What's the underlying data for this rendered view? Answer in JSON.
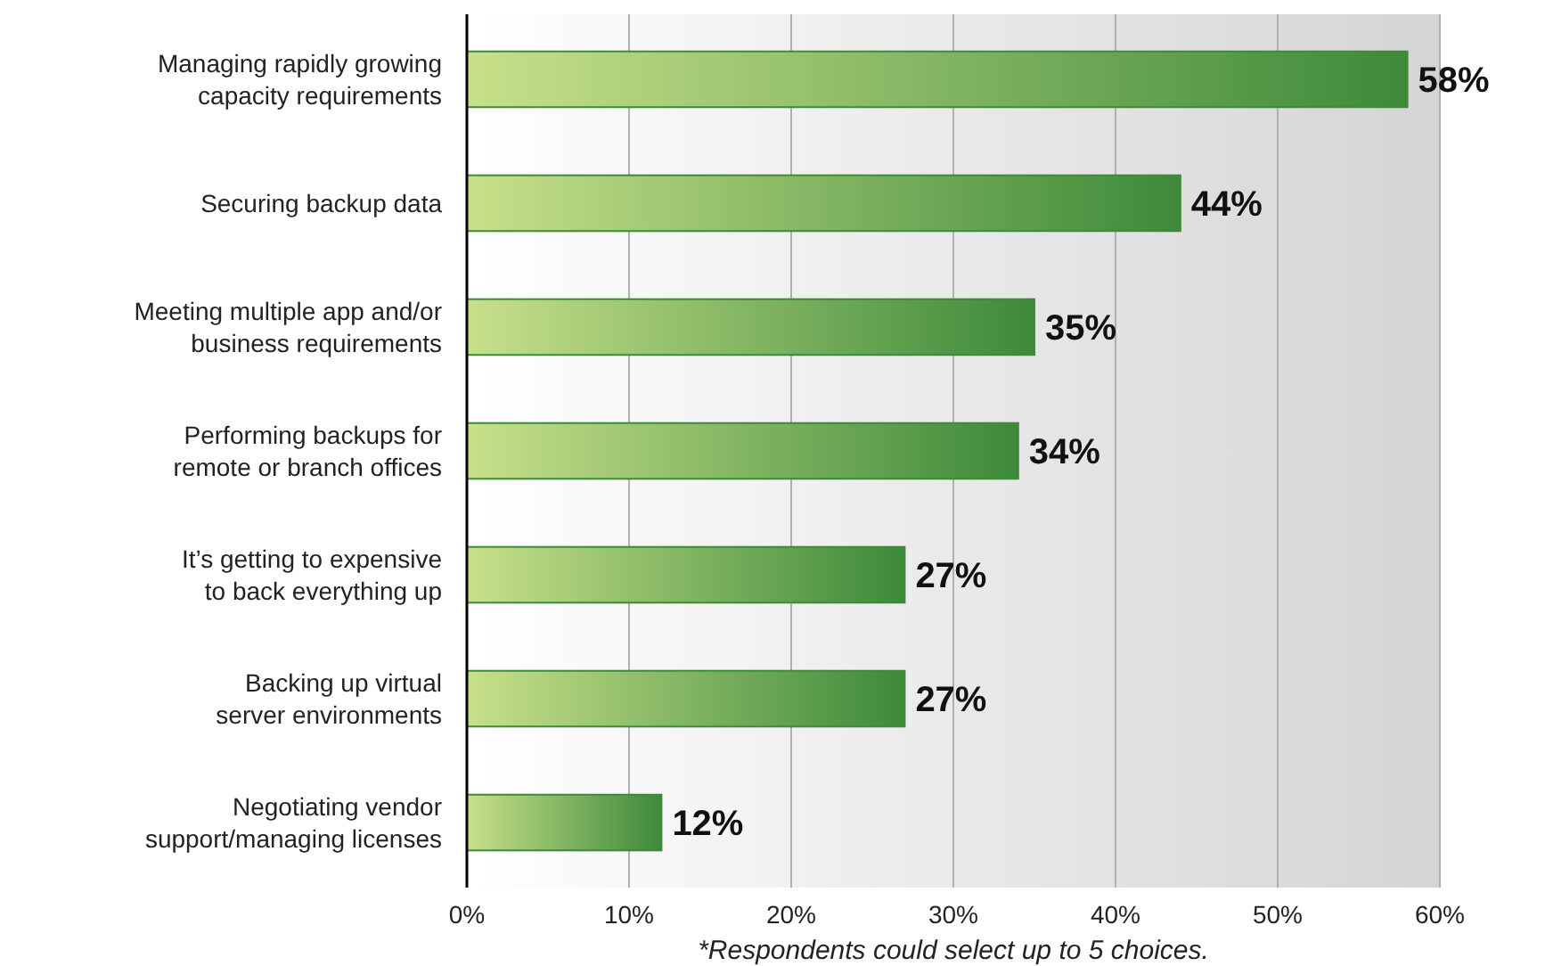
{
  "chart_data": {
    "type": "bar",
    "orientation": "horizontal",
    "categories": [
      "Managing rapidly growing capacity requirements",
      "Securing backup data",
      "Meeting multiple app and/or business requirements",
      "Performing backups for remote or branch offices",
      "It’s getting to expensive to back everything up",
      "Backing up virtual server environments",
      "Negotiating vendor support/managing licenses"
    ],
    "values": [
      58,
      44,
      35,
      34,
      27,
      27,
      12
    ],
    "color": "#3d8a3a",
    "xlim": [
      0,
      60
    ],
    "xticks": [
      {
        "value": 0,
        "label": "0%"
      },
      {
        "value": 10,
        "label": "10%"
      },
      {
        "value": 20,
        "label": "20%"
      },
      {
        "value": 30,
        "label": "30%"
      },
      {
        "value": 40,
        "label": "40%"
      },
      {
        "value": 50,
        "label": "50%"
      },
      {
        "value": 60,
        "label": "60%"
      }
    ],
    "grid": "x",
    "value_labels": [
      "58%",
      "44%",
      "35%",
      "34%",
      "27%",
      "27%",
      "12%"
    ],
    "annotations": [
      "*Respondents could select up to 5 choices."
    ]
  }
}
